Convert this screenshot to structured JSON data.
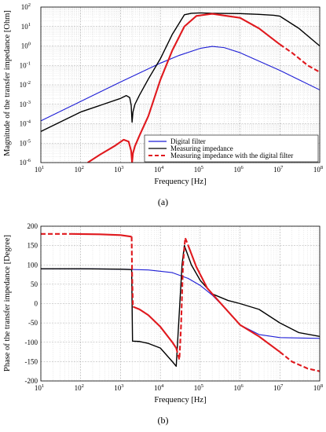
{
  "panels": [
    {
      "caption": "(a)"
    },
    {
      "caption": "(b)"
    }
  ],
  "colors": {
    "digital": "#1f1fd6",
    "measuring": "#000000",
    "combined": "#e0191e"
  },
  "chart_data": [
    {
      "type": "line",
      "xscale": "log",
      "yscale": "log",
      "xlim": [
        10,
        100000000
      ],
      "ylim": [
        1e-06,
        100
      ],
      "grid": true,
      "xlabel": "Frequency [Hz]",
      "ylabel": "Magnitude of the transfer impedance [Ohm]",
      "x_ticks": [
        {
          "value": 10,
          "base": "10",
          "exp": "1"
        },
        {
          "value": 100,
          "base": "10",
          "exp": "2"
        },
        {
          "value": 1000,
          "base": "10",
          "exp": "3"
        },
        {
          "value": 10000,
          "base": "10",
          "exp": "4"
        },
        {
          "value": 100000,
          "base": "10",
          "exp": "5"
        },
        {
          "value": 1000000,
          "base": "10",
          "exp": "6"
        },
        {
          "value": 10000000,
          "base": "10",
          "exp": "7"
        },
        {
          "value": 100000000,
          "base": "10",
          "exp": "8"
        }
      ],
      "y_ticks": [
        {
          "value": 100,
          "base": "10",
          "exp": "2"
        },
        {
          "value": 10,
          "base": "10",
          "exp": "1"
        },
        {
          "value": 1,
          "base": "10",
          "exp": "0"
        },
        {
          "value": 0.1,
          "base": "10",
          "exp": "-1"
        },
        {
          "value": 0.01,
          "base": "10",
          "exp": "-2"
        },
        {
          "value": 0.001,
          "base": "10",
          "exp": "-3"
        },
        {
          "value": 0.0001,
          "base": "10",
          "exp": "-4"
        },
        {
          "value": 1e-05,
          "base": "10",
          "exp": "-5"
        },
        {
          "value": 1e-06,
          "base": "10",
          "exp": "-6"
        }
      ],
      "legend_position": "bottom-right",
      "series": [
        {
          "name": "Digital filter",
          "color_key": "digital",
          "style": "solid",
          "x": [
            10,
            100,
            1000,
            10000,
            30000,
            100000,
            200000,
            400000,
            1000000,
            10000000,
            100000000
          ],
          "y": [
            0.00014,
            0.0014,
            0.014,
            0.13,
            0.33,
            0.75,
            0.95,
            0.82,
            0.45,
            0.055,
            0.0055
          ]
        },
        {
          "name": "Measuring impedance",
          "color_key": "measuring",
          "style": "solid",
          "x": [
            10,
            100,
            1000,
            1400,
            1700,
            1850,
            1950,
            2050,
            2300,
            3000,
            5000,
            10000,
            20000,
            40000,
            60000,
            100000,
            200000,
            1000000,
            3000000,
            7000000,
            10000000,
            30000000,
            100000000
          ],
          "y": [
            4e-05,
            0.0004,
            0.002,
            0.0028,
            0.0022,
            0.0009,
            0.00012,
            0.0004,
            0.001,
            0.003,
            0.02,
            0.22,
            4,
            40,
            48,
            50,
            48,
            46,
            42,
            38,
            34,
            8,
            1
          ]
        },
        {
          "name": "Measuring impedance with the digital filter",
          "color_key": "combined",
          "style": "solid",
          "x": [
            150,
            300,
            700,
            1200,
            1600,
            1850,
            1950,
            2050,
            2300,
            3000,
            5000,
            10000,
            20000,
            40000,
            80000,
            200000,
            1000000,
            3000000,
            10000000
          ],
          "y": [
            1e-06,
            2.5e-06,
            7e-06,
            1.5e-05,
            1.2e-05,
            4e-06,
            1e-06,
            3e-06,
            7e-06,
            2.5e-05,
            0.00025,
            0.018,
            0.6,
            10,
            35,
            45,
            28,
            8,
            1.2
          ]
        },
        {
          "name": "",
          "color_key": "combined",
          "style": "dashed",
          "x": [
            10000000,
            20000000,
            50000000,
            100000000
          ],
          "y": [
            1.2,
            0.45,
            0.1,
            0.045
          ]
        }
      ]
    },
    {
      "type": "line",
      "xscale": "log",
      "yscale": "linear",
      "xlim": [
        10,
        100000000
      ],
      "ylim": [
        -200,
        200
      ],
      "grid": true,
      "xlabel": "Frequency [Hz]",
      "ylabel": "Phase of the transfer impedance [Degree]",
      "x_ticks": [
        {
          "value": 10,
          "base": "10",
          "exp": "1"
        },
        {
          "value": 100,
          "base": "10",
          "exp": "2"
        },
        {
          "value": 1000,
          "base": "10",
          "exp": "3"
        },
        {
          "value": 10000,
          "base": "10",
          "exp": "4"
        },
        {
          "value": 100000,
          "base": "10",
          "exp": "5"
        },
        {
          "value": 1000000,
          "base": "10",
          "exp": "6"
        },
        {
          "value": 10000000,
          "base": "10",
          "exp": "7"
        },
        {
          "value": 100000000,
          "base": "10",
          "exp": "8"
        }
      ],
      "y_ticks": [
        {
          "value": 200,
          "label": "200"
        },
        {
          "value": 150,
          "label": "150"
        },
        {
          "value": 100,
          "label": "100"
        },
        {
          "value": 50,
          "label": "50"
        },
        {
          "value": 0,
          "label": "0"
        },
        {
          "value": -50,
          "label": "-50"
        },
        {
          "value": -100,
          "label": "-100"
        },
        {
          "value": -150,
          "label": "-150"
        },
        {
          "value": -200,
          "label": "-200"
        }
      ],
      "series": [
        {
          "color_key": "digital",
          "style": "solid",
          "x": [
            10,
            100,
            1000,
            5000,
            20000,
            50000,
            100000,
            200000,
            500000,
            1000000,
            3000000,
            10000000,
            100000000
          ],
          "y": [
            90,
            90,
            89,
            87,
            80,
            65,
            47,
            22,
            -20,
            -55,
            -80,
            -88,
            -90
          ]
        },
        {
          "color_key": "measuring",
          "style": "solid",
          "x": [
            10,
            100,
            1000,
            1900,
            1950,
            2000,
            3000,
            5000,
            10000,
            20000,
            25000,
            35000,
            40000,
            60000,
            100000,
            200000,
            500000,
            1000000,
            3000000,
            10000000,
            30000000,
            100000000
          ],
          "y": [
            90,
            90,
            89,
            88,
            0,
            -97,
            -98,
            -103,
            -115,
            -150,
            -162,
            100,
            150,
            100,
            60,
            25,
            8,
            0,
            -15,
            -50,
            -75,
            -85
          ]
        },
        {
          "color_key": "combined",
          "style": "dashed",
          "x": [
            10,
            30,
            60
          ],
          "y": [
            180,
            180,
            180
          ]
        },
        {
          "color_key": "combined",
          "style": "solid",
          "x": [
            60,
            300,
            1000,
            1900
          ],
          "y": [
            180,
            179,
            177,
            173
          ]
        },
        {
          "color_key": "combined",
          "style": "dashed",
          "x": [
            1900,
            1950,
            2050
          ],
          "y": [
            173,
            80,
            -8
          ]
        },
        {
          "color_key": "combined",
          "style": "solid",
          "x": [
            2050,
            3000,
            5000,
            10000,
            20000,
            25000
          ],
          "y": [
            -8,
            -15,
            -30,
            -60,
            -100,
            -115
          ]
        },
        {
          "color_key": "combined",
          "style": "dashed",
          "x": [
            25000,
            30000,
            33000,
            37000,
            42000,
            50000
          ],
          "y": [
            -115,
            -145,
            -60,
            100,
            170,
            150
          ]
        },
        {
          "color_key": "combined",
          "style": "solid",
          "x": [
            50000,
            80000,
            150000,
            300000,
            1000000,
            3000000,
            10000000
          ],
          "y": [
            150,
            95,
            40,
            5,
            -55,
            -85,
            -125
          ]
        },
        {
          "color_key": "combined",
          "style": "dashed",
          "x": [
            10000000,
            20000000,
            50000000,
            100000000
          ],
          "y": [
            -125,
            -150,
            -168,
            -175
          ]
        }
      ]
    }
  ]
}
